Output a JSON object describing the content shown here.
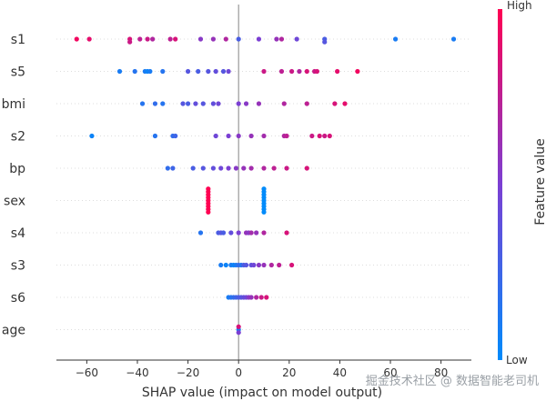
{
  "chart_data": {
    "type": "scatter",
    "subtype": "shap_beeswarm",
    "xlabel": "SHAP value (impact on model output)",
    "xlim": [
      -72,
      92
    ],
    "xticks": [
      -60,
      -40,
      -20,
      0,
      20,
      40,
      60,
      80
    ],
    "colorbar": {
      "label": "Feature value",
      "high": "High",
      "low": "Low",
      "low_color": "#008bfb",
      "high_color": "#ff0052"
    },
    "features": [
      {
        "name": "s1",
        "points": [
          {
            "x": -64,
            "v": 0.95
          },
          {
            "x": -59,
            "v": 0.9
          },
          {
            "x": -43,
            "v": 0.85
          },
          {
            "x": -43,
            "v": 0.8
          },
          {
            "x": -39,
            "v": 0.75
          },
          {
            "x": -36,
            "v": 0.8
          },
          {
            "x": -34,
            "v": 0.7
          },
          {
            "x": -27,
            "v": 0.75
          },
          {
            "x": -25,
            "v": 0.85
          },
          {
            "x": -15,
            "v": 0.55
          },
          {
            "x": -10,
            "v": 0.6
          },
          {
            "x": -5,
            "v": 0.7
          },
          {
            "x": 0,
            "v": 0.3
          },
          {
            "x": 8,
            "v": 0.5
          },
          {
            "x": 15,
            "v": 0.6
          },
          {
            "x": 17,
            "v": 0.7
          },
          {
            "x": 23,
            "v": 0.45
          },
          {
            "x": 34,
            "v": 0.3
          },
          {
            "x": 34,
            "v": 0.35
          },
          {
            "x": 62,
            "v": 0.1
          },
          {
            "x": 85,
            "v": 0.1
          }
        ]
      },
      {
        "name": "s5",
        "points": [
          {
            "x": -47,
            "v": 0.1
          },
          {
            "x": -41,
            "v": 0.15
          },
          {
            "x": -37,
            "v": 0.1
          },
          {
            "x": -36,
            "v": 0.05
          },
          {
            "x": -35,
            "v": 0.1
          },
          {
            "x": -30,
            "v": 0.15
          },
          {
            "x": -20,
            "v": 0.35
          },
          {
            "x": -16,
            "v": 0.3
          },
          {
            "x": -12,
            "v": 0.35
          },
          {
            "x": -9,
            "v": 0.4
          },
          {
            "x": -6,
            "v": 0.35
          },
          {
            "x": -4,
            "v": 0.45
          },
          {
            "x": 10,
            "v": 0.8
          },
          {
            "x": 17,
            "v": 0.75
          },
          {
            "x": 21,
            "v": 0.8
          },
          {
            "x": 24,
            "v": 0.7
          },
          {
            "x": 27,
            "v": 0.85
          },
          {
            "x": 30,
            "v": 0.8
          },
          {
            "x": 31,
            "v": 0.85
          },
          {
            "x": 39,
            "v": 0.9
          },
          {
            "x": 47,
            "v": 0.95
          }
        ]
      },
      {
        "name": "bmi",
        "points": [
          {
            "x": -38,
            "v": 0.15
          },
          {
            "x": -33,
            "v": 0.2
          },
          {
            "x": -30,
            "v": 0.15
          },
          {
            "x": -22,
            "v": 0.35
          },
          {
            "x": -20,
            "v": 0.3
          },
          {
            "x": -17,
            "v": 0.4
          },
          {
            "x": -14,
            "v": 0.35
          },
          {
            "x": -10,
            "v": 0.4
          },
          {
            "x": -8,
            "v": 0.45
          },
          {
            "x": 0,
            "v": 0.5
          },
          {
            "x": 3,
            "v": 0.55
          },
          {
            "x": 8,
            "v": 0.6
          },
          {
            "x": 18,
            "v": 0.7
          },
          {
            "x": 27,
            "v": 0.75
          },
          {
            "x": 38,
            "v": 0.85
          },
          {
            "x": 42,
            "v": 0.9
          }
        ]
      },
      {
        "name": "s2",
        "points": [
          {
            "x": -58,
            "v": 0.05
          },
          {
            "x": -33,
            "v": 0.15
          },
          {
            "x": -26,
            "v": 0.2
          },
          {
            "x": -25,
            "v": 0.25
          },
          {
            "x": -9,
            "v": 0.45
          },
          {
            "x": -4,
            "v": 0.5
          },
          {
            "x": 0,
            "v": 0.55
          },
          {
            "x": 5,
            "v": 0.6
          },
          {
            "x": 10,
            "v": 0.65
          },
          {
            "x": 18,
            "v": 0.7
          },
          {
            "x": 19,
            "v": 0.75
          },
          {
            "x": 29,
            "v": 0.8
          },
          {
            "x": 32,
            "v": 0.85
          },
          {
            "x": 34,
            "v": 0.8
          },
          {
            "x": 36,
            "v": 0.85
          }
        ]
      },
      {
        "name": "bp",
        "points": [
          {
            "x": -28,
            "v": 0.2
          },
          {
            "x": -26,
            "v": 0.25
          },
          {
            "x": -18,
            "v": 0.3
          },
          {
            "x": -14,
            "v": 0.35
          },
          {
            "x": -10,
            "v": 0.4
          },
          {
            "x": -7,
            "v": 0.45
          },
          {
            "x": -4,
            "v": 0.5
          },
          {
            "x": -1,
            "v": 0.55
          },
          {
            "x": 2,
            "v": 0.6
          },
          {
            "x": 5,
            "v": 0.65
          },
          {
            "x": 10,
            "v": 0.7
          },
          {
            "x": 14,
            "v": 0.75
          },
          {
            "x": 19,
            "v": 0.8
          },
          {
            "x": 27,
            "v": 0.85
          }
        ]
      },
      {
        "name": "sex",
        "points": [
          {
            "x": -12,
            "v": 1.0
          },
          {
            "x": -12,
            "v": 1.0
          },
          {
            "x": -12,
            "v": 1.0
          },
          {
            "x": -12,
            "v": 1.0
          },
          {
            "x": -12,
            "v": 1.0
          },
          {
            "x": -12,
            "v": 1.0
          },
          {
            "x": -12,
            "v": 1.0
          },
          {
            "x": -12,
            "v": 1.0
          },
          {
            "x": -12,
            "v": 1.0
          },
          {
            "x": 10,
            "v": 0.0
          },
          {
            "x": 10,
            "v": 0.0
          },
          {
            "x": 10,
            "v": 0.0
          },
          {
            "x": 10,
            "v": 0.0
          },
          {
            "x": 10,
            "v": 0.0
          },
          {
            "x": 10,
            "v": 0.0
          },
          {
            "x": 10,
            "v": 0.0
          },
          {
            "x": 10,
            "v": 0.0
          },
          {
            "x": 10,
            "v": 0.0
          }
        ]
      },
      {
        "name": "s4",
        "points": [
          {
            "x": -15,
            "v": 0.15
          },
          {
            "x": -8,
            "v": 0.3
          },
          {
            "x": -7,
            "v": 0.35
          },
          {
            "x": -6,
            "v": 0.3
          },
          {
            "x": -3,
            "v": 0.4
          },
          {
            "x": 0,
            "v": 0.5
          },
          {
            "x": 3,
            "v": 0.6
          },
          {
            "x": 4,
            "v": 0.55
          },
          {
            "x": 5,
            "v": 0.65
          },
          {
            "x": 7,
            "v": 0.6
          },
          {
            "x": 10,
            "v": 0.7
          },
          {
            "x": 19,
            "v": 0.85
          }
        ]
      },
      {
        "name": "s3",
        "points": [
          {
            "x": -7,
            "v": 0.1
          },
          {
            "x": -5,
            "v": 0.05
          },
          {
            "x": -3,
            "v": 0.1
          },
          {
            "x": -2,
            "v": 0.05
          },
          {
            "x": -1,
            "v": 0.1
          },
          {
            "x": 0,
            "v": 0.2
          },
          {
            "x": 1,
            "v": 0.15
          },
          {
            "x": 2,
            "v": 0.3
          },
          {
            "x": 3,
            "v": 0.35
          },
          {
            "x": 5,
            "v": 0.4
          },
          {
            "x": 6,
            "v": 0.45
          },
          {
            "x": 8,
            "v": 0.55
          },
          {
            "x": 10,
            "v": 0.6
          },
          {
            "x": 13,
            "v": 0.7
          },
          {
            "x": 16,
            "v": 0.75
          },
          {
            "x": 21,
            "v": 0.85
          }
        ]
      },
      {
        "name": "s6",
        "points": [
          {
            "x": -4,
            "v": 0.1
          },
          {
            "x": -3,
            "v": 0.15
          },
          {
            "x": -2,
            "v": 0.2
          },
          {
            "x": -1,
            "v": 0.25
          },
          {
            "x": 0,
            "v": 0.3
          },
          {
            "x": 1,
            "v": 0.35
          },
          {
            "x": 2,
            "v": 0.4
          },
          {
            "x": 3,
            "v": 0.45
          },
          {
            "x": 4,
            "v": 0.55
          },
          {
            "x": 5,
            "v": 0.6
          },
          {
            "x": 7,
            "v": 0.7
          },
          {
            "x": 9,
            "v": 0.8
          },
          {
            "x": 11,
            "v": 0.85
          }
        ]
      },
      {
        "name": "age",
        "points": [
          {
            "x": 0,
            "v": 0.1
          },
          {
            "x": 0,
            "v": 0.5
          },
          {
            "x": 0,
            "v": 0.85
          }
        ]
      }
    ]
  },
  "watermark": "掘金技术社区 @ 数据智能老司机"
}
